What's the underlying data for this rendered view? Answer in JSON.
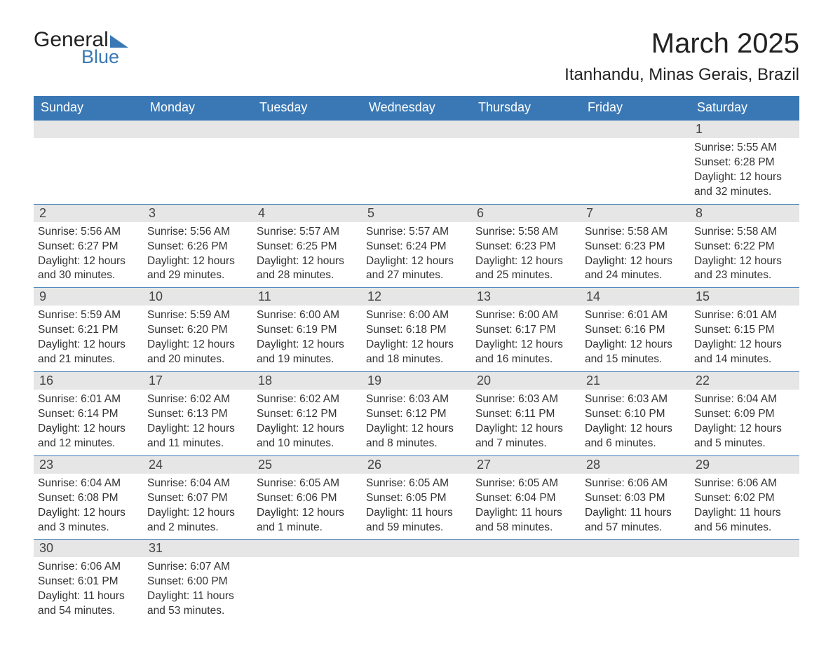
{
  "logo": {
    "text_general": "General",
    "text_blue": "Blue"
  },
  "title": {
    "month_year": "March 2025",
    "location": "Itanhandu, Minas Gerais, Brazil"
  },
  "colors": {
    "header_bg": "#3a78b5",
    "header_text": "#ffffff",
    "day_bar_bg": "#e6e6e6",
    "body_text": "#333333",
    "border": "#3a78b5"
  },
  "weekdays": [
    "Sunday",
    "Monday",
    "Tuesday",
    "Wednesday",
    "Thursday",
    "Friday",
    "Saturday"
  ],
  "weeks": [
    [
      {
        "day": "",
        "sunrise": "",
        "sunset": "",
        "daylight": ""
      },
      {
        "day": "",
        "sunrise": "",
        "sunset": "",
        "daylight": ""
      },
      {
        "day": "",
        "sunrise": "",
        "sunset": "",
        "daylight": ""
      },
      {
        "day": "",
        "sunrise": "",
        "sunset": "",
        "daylight": ""
      },
      {
        "day": "",
        "sunrise": "",
        "sunset": "",
        "daylight": ""
      },
      {
        "day": "",
        "sunrise": "",
        "sunset": "",
        "daylight": ""
      },
      {
        "day": "1",
        "sunrise": "Sunrise: 5:55 AM",
        "sunset": "Sunset: 6:28 PM",
        "daylight": "Daylight: 12 hours and 32 minutes."
      }
    ],
    [
      {
        "day": "2",
        "sunrise": "Sunrise: 5:56 AM",
        "sunset": "Sunset: 6:27 PM",
        "daylight": "Daylight: 12 hours and 30 minutes."
      },
      {
        "day": "3",
        "sunrise": "Sunrise: 5:56 AM",
        "sunset": "Sunset: 6:26 PM",
        "daylight": "Daylight: 12 hours and 29 minutes."
      },
      {
        "day": "4",
        "sunrise": "Sunrise: 5:57 AM",
        "sunset": "Sunset: 6:25 PM",
        "daylight": "Daylight: 12 hours and 28 minutes."
      },
      {
        "day": "5",
        "sunrise": "Sunrise: 5:57 AM",
        "sunset": "Sunset: 6:24 PM",
        "daylight": "Daylight: 12 hours and 27 minutes."
      },
      {
        "day": "6",
        "sunrise": "Sunrise: 5:58 AM",
        "sunset": "Sunset: 6:23 PM",
        "daylight": "Daylight: 12 hours and 25 minutes."
      },
      {
        "day": "7",
        "sunrise": "Sunrise: 5:58 AM",
        "sunset": "Sunset: 6:23 PM",
        "daylight": "Daylight: 12 hours and 24 minutes."
      },
      {
        "day": "8",
        "sunrise": "Sunrise: 5:58 AM",
        "sunset": "Sunset: 6:22 PM",
        "daylight": "Daylight: 12 hours and 23 minutes."
      }
    ],
    [
      {
        "day": "9",
        "sunrise": "Sunrise: 5:59 AM",
        "sunset": "Sunset: 6:21 PM",
        "daylight": "Daylight: 12 hours and 21 minutes."
      },
      {
        "day": "10",
        "sunrise": "Sunrise: 5:59 AM",
        "sunset": "Sunset: 6:20 PM",
        "daylight": "Daylight: 12 hours and 20 minutes."
      },
      {
        "day": "11",
        "sunrise": "Sunrise: 6:00 AM",
        "sunset": "Sunset: 6:19 PM",
        "daylight": "Daylight: 12 hours and 19 minutes."
      },
      {
        "day": "12",
        "sunrise": "Sunrise: 6:00 AM",
        "sunset": "Sunset: 6:18 PM",
        "daylight": "Daylight: 12 hours and 18 minutes."
      },
      {
        "day": "13",
        "sunrise": "Sunrise: 6:00 AM",
        "sunset": "Sunset: 6:17 PM",
        "daylight": "Daylight: 12 hours and 16 minutes."
      },
      {
        "day": "14",
        "sunrise": "Sunrise: 6:01 AM",
        "sunset": "Sunset: 6:16 PM",
        "daylight": "Daylight: 12 hours and 15 minutes."
      },
      {
        "day": "15",
        "sunrise": "Sunrise: 6:01 AM",
        "sunset": "Sunset: 6:15 PM",
        "daylight": "Daylight: 12 hours and 14 minutes."
      }
    ],
    [
      {
        "day": "16",
        "sunrise": "Sunrise: 6:01 AM",
        "sunset": "Sunset: 6:14 PM",
        "daylight": "Daylight: 12 hours and 12 minutes."
      },
      {
        "day": "17",
        "sunrise": "Sunrise: 6:02 AM",
        "sunset": "Sunset: 6:13 PM",
        "daylight": "Daylight: 12 hours and 11 minutes."
      },
      {
        "day": "18",
        "sunrise": "Sunrise: 6:02 AM",
        "sunset": "Sunset: 6:12 PM",
        "daylight": "Daylight: 12 hours and 10 minutes."
      },
      {
        "day": "19",
        "sunrise": "Sunrise: 6:03 AM",
        "sunset": "Sunset: 6:12 PM",
        "daylight": "Daylight: 12 hours and 8 minutes."
      },
      {
        "day": "20",
        "sunrise": "Sunrise: 6:03 AM",
        "sunset": "Sunset: 6:11 PM",
        "daylight": "Daylight: 12 hours and 7 minutes."
      },
      {
        "day": "21",
        "sunrise": "Sunrise: 6:03 AM",
        "sunset": "Sunset: 6:10 PM",
        "daylight": "Daylight: 12 hours and 6 minutes."
      },
      {
        "day": "22",
        "sunrise": "Sunrise: 6:04 AM",
        "sunset": "Sunset: 6:09 PM",
        "daylight": "Daylight: 12 hours and 5 minutes."
      }
    ],
    [
      {
        "day": "23",
        "sunrise": "Sunrise: 6:04 AM",
        "sunset": "Sunset: 6:08 PM",
        "daylight": "Daylight: 12 hours and 3 minutes."
      },
      {
        "day": "24",
        "sunrise": "Sunrise: 6:04 AM",
        "sunset": "Sunset: 6:07 PM",
        "daylight": "Daylight: 12 hours and 2 minutes."
      },
      {
        "day": "25",
        "sunrise": "Sunrise: 6:05 AM",
        "sunset": "Sunset: 6:06 PM",
        "daylight": "Daylight: 12 hours and 1 minute."
      },
      {
        "day": "26",
        "sunrise": "Sunrise: 6:05 AM",
        "sunset": "Sunset: 6:05 PM",
        "daylight": "Daylight: 11 hours and 59 minutes."
      },
      {
        "day": "27",
        "sunrise": "Sunrise: 6:05 AM",
        "sunset": "Sunset: 6:04 PM",
        "daylight": "Daylight: 11 hours and 58 minutes."
      },
      {
        "day": "28",
        "sunrise": "Sunrise: 6:06 AM",
        "sunset": "Sunset: 6:03 PM",
        "daylight": "Daylight: 11 hours and 57 minutes."
      },
      {
        "day": "29",
        "sunrise": "Sunrise: 6:06 AM",
        "sunset": "Sunset: 6:02 PM",
        "daylight": "Daylight: 11 hours and 56 minutes."
      }
    ],
    [
      {
        "day": "30",
        "sunrise": "Sunrise: 6:06 AM",
        "sunset": "Sunset: 6:01 PM",
        "daylight": "Daylight: 11 hours and 54 minutes."
      },
      {
        "day": "31",
        "sunrise": "Sunrise: 6:07 AM",
        "sunset": "Sunset: 6:00 PM",
        "daylight": "Daylight: 11 hours and 53 minutes."
      },
      {
        "day": "",
        "sunrise": "",
        "sunset": "",
        "daylight": ""
      },
      {
        "day": "",
        "sunrise": "",
        "sunset": "",
        "daylight": ""
      },
      {
        "day": "",
        "sunrise": "",
        "sunset": "",
        "daylight": ""
      },
      {
        "day": "",
        "sunrise": "",
        "sunset": "",
        "daylight": ""
      },
      {
        "day": "",
        "sunrise": "",
        "sunset": "",
        "daylight": ""
      }
    ]
  ]
}
